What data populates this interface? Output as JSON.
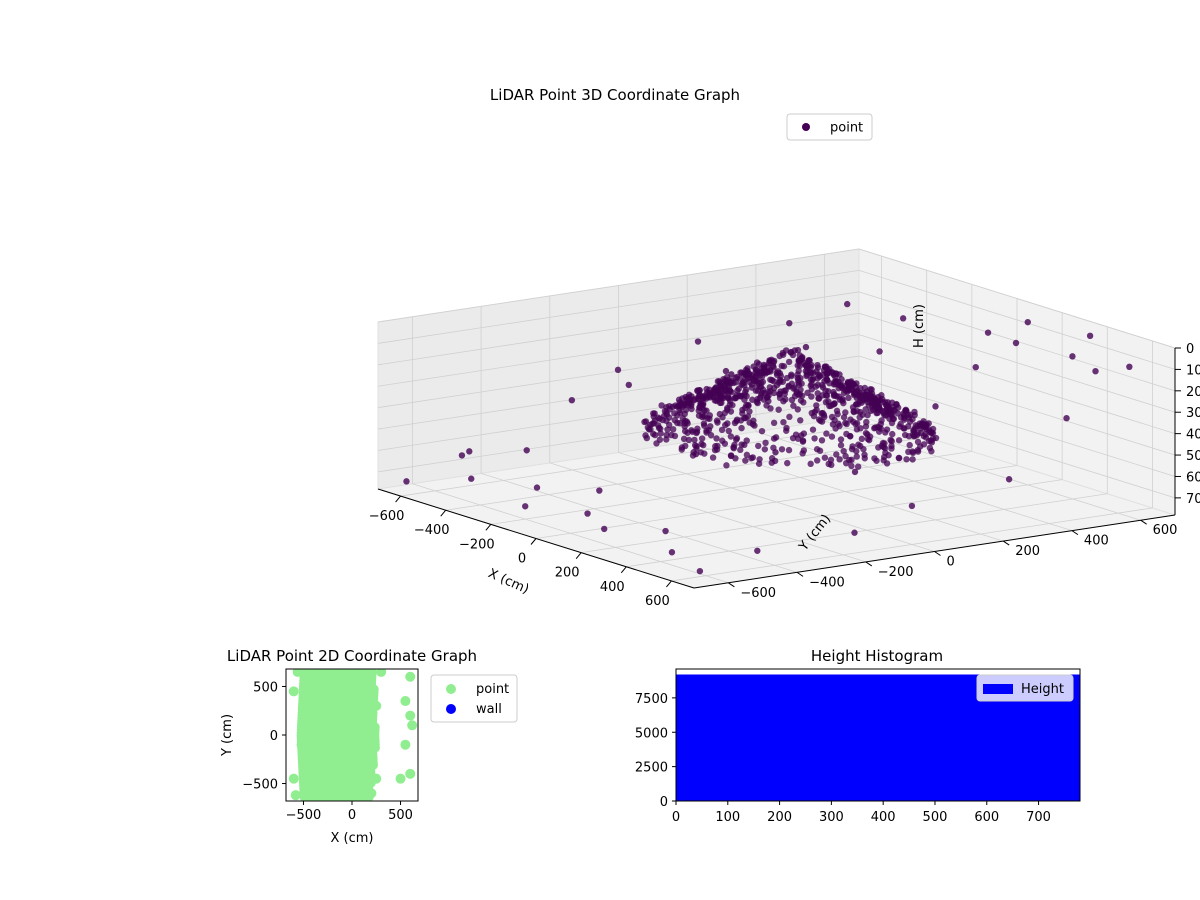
{
  "chart_data": [
    {
      "type": "scatter",
      "projection": "3d",
      "title": "LiDAR Point 3D Coordinate Graph",
      "xlabel": "X (cm)",
      "ylabel": "Y (cm)",
      "zlabel": "H (cm)",
      "xlim": [
        -700,
        700
      ],
      "ylim": [
        -700,
        700
      ],
      "zlim": [
        0,
        780
      ],
      "z_axis_inverted": true,
      "x_ticks": [
        -600,
        -400,
        -200,
        0,
        200,
        400,
        600
      ],
      "x_tick_labels": [
        "−600",
        "−400",
        "−200",
        "0",
        "200",
        "400",
        "600"
      ],
      "y_ticks": [
        -600,
        -400,
        -200,
        0,
        200,
        400,
        600
      ],
      "y_tick_labels": [
        "−600",
        "−400",
        "−200",
        "0",
        "200",
        "400",
        "600"
      ],
      "z_ticks": [
        0,
        100,
        200,
        300,
        400,
        500,
        600,
        700
      ],
      "z_tick_labels": [
        "0",
        "100",
        "200",
        "300",
        "400",
        "500",
        "600",
        "700"
      ],
      "grid": true,
      "legend_position": "top-right",
      "series": [
        {
          "name": "point",
          "color": "#440154",
          "note": "dense dome-shaped cloud of LiDAR returns; a sample of visible points is listed",
          "points": [
            [
              -600,
              -500,
              620
            ],
            [
              -500,
              -560,
              700
            ],
            [
              -650,
              -300,
              680
            ],
            [
              -450,
              -620,
              560
            ],
            [
              -300,
              -500,
              690
            ],
            [
              -200,
              -600,
              720
            ],
            [
              -100,
              -450,
              650
            ],
            [
              0,
              -550,
              700
            ],
            [
              150,
              -600,
              710
            ],
            [
              300,
              -520,
              690
            ],
            [
              450,
              -600,
              720
            ],
            [
              600,
              -450,
              700
            ],
            [
              650,
              -200,
              660
            ],
            [
              600,
              0,
              600
            ],
            [
              650,
              250,
              520
            ],
            [
              600,
              450,
              300
            ],
            [
              500,
              600,
              150
            ],
            [
              650,
              600,
              80
            ],
            [
              550,
              500,
              40
            ],
            [
              400,
              650,
              30
            ],
            [
              300,
              500,
              60
            ],
            [
              200,
              600,
              20
            ],
            [
              100,
              550,
              90
            ],
            [
              -200,
              500,
              110
            ],
            [
              -400,
              300,
              150
            ],
            [
              -500,
              100,
              220
            ],
            [
              -550,
              -100,
              320
            ],
            [
              -450,
              -300,
              380
            ],
            [
              -350,
              -200,
              300
            ],
            [
              -200,
              0,
              250
            ],
            [
              0,
              100,
              200
            ],
            [
              200,
              0,
              300
            ],
            [
              300,
              -200,
              400
            ],
            [
              100,
              -300,
              450
            ],
            [
              -100,
              -150,
              380
            ],
            [
              -300,
              50,
              280
            ],
            [
              400,
              200,
              250
            ],
            [
              500,
              -100,
              450
            ],
            [
              0,
              300,
              150
            ],
            [
              -250,
              250,
              200
            ],
            [
              350,
              350,
              120
            ],
            [
              -600,
              600,
              200
            ],
            [
              650,
              -650,
              730
            ],
            [
              -650,
              -650,
              740
            ]
          ]
        }
      ]
    },
    {
      "type": "scatter",
      "title": "LiDAR Point 2D Coordinate Graph",
      "xlabel": "X (cm)",
      "ylabel": "Y (cm)",
      "xlim": [
        -680,
        680
      ],
      "ylim": [
        -680,
        680
      ],
      "x_ticks": [
        -500,
        0,
        500
      ],
      "x_tick_labels": [
        "−500",
        "0",
        "500"
      ],
      "y_ticks": [
        -500,
        0,
        500
      ],
      "y_tick_labels": [
        "−500",
        "0",
        "500"
      ],
      "legend_position": "outside-right",
      "series": [
        {
          "name": "point",
          "color": "#90ee90",
          "note": "filled blob spanning roughly x -560..300, y -650..680 plus scattered points",
          "points": [
            [
              -500,
              0
            ],
            [
              -450,
              200
            ],
            [
              -400,
              400
            ],
            [
              -350,
              600
            ],
            [
              -300,
              650
            ],
            [
              -200,
              600
            ],
            [
              -100,
              550
            ],
            [
              0,
              500
            ],
            [
              100,
              450
            ],
            [
              200,
              400
            ],
            [
              250,
              300
            ],
            [
              200,
              100
            ],
            [
              150,
              -100
            ],
            [
              200,
              -300
            ],
            [
              250,
              -450
            ],
            [
              200,
              -600
            ],
            [
              100,
              -620
            ],
            [
              0,
              -640
            ],
            [
              -100,
              -620
            ],
            [
              -200,
              -600
            ],
            [
              -300,
              -550
            ],
            [
              -400,
              -450
            ],
            [
              -480,
              -300
            ],
            [
              -520,
              -100
            ],
            [
              -300,
              0
            ],
            [
              -200,
              200
            ],
            [
              -100,
              0
            ],
            [
              0,
              -200
            ],
            [
              -200,
              -200
            ],
            [
              -350,
              300
            ],
            [
              600,
              600
            ],
            [
              550,
              350
            ],
            [
              600,
              200
            ],
            [
              620,
              100
            ],
            [
              550,
              -100
            ],
            [
              600,
              -400
            ],
            [
              500,
              -450
            ],
            [
              -600,
              -450
            ],
            [
              -580,
              -620
            ],
            [
              -560,
              650
            ],
            [
              -600,
              450
            ],
            [
              300,
              650
            ]
          ]
        },
        {
          "name": "wall",
          "color": "#0000ff",
          "points": []
        }
      ]
    },
    {
      "type": "bar",
      "subtype": "histogram",
      "title": "Height Histogram",
      "xlabel": "",
      "ylabel": "",
      "xlim": [
        0,
        780
      ],
      "ylim": [
        0,
        9600
      ],
      "x_ticks": [
        0,
        100,
        200,
        300,
        400,
        500,
        600,
        700
      ],
      "x_tick_labels": [
        "0",
        "100",
        "200",
        "300",
        "400",
        "500",
        "600",
        "700"
      ],
      "y_ticks": [
        0,
        2500,
        5000,
        7500
      ],
      "y_tick_labels": [
        "0",
        "2500",
        "5000",
        "7500"
      ],
      "legend_position": "top-right",
      "series": [
        {
          "name": "Height",
          "color": "#0000ff",
          "bins": [
            [
              0,
              780,
              9200
            ]
          ]
        }
      ]
    }
  ]
}
